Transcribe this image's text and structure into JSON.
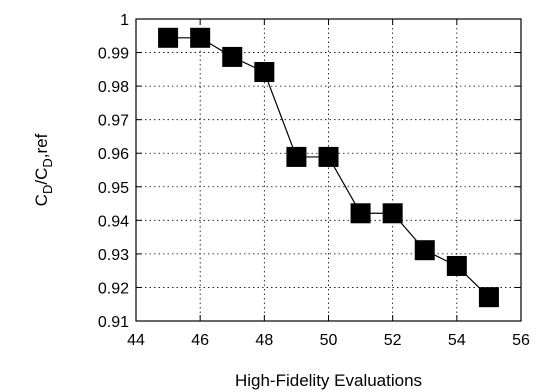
{
  "chart_data": {
    "type": "line",
    "title": "",
    "xlabel": "High-Fidelity Evaluations",
    "ylabel": "C_D/C_D,ref",
    "ylabel_parts": {
      "c1": "C",
      "s1": "D",
      "mid": "/C",
      "s2": "D",
      "tail": ",ref"
    },
    "xlim": [
      44,
      56
    ],
    "ylim": [
      0.91,
      1.0
    ],
    "x_ticks": [
      44,
      46,
      48,
      50,
      52,
      54,
      56
    ],
    "y_ticks": [
      0.91,
      0.92,
      0.93,
      0.94,
      0.95,
      0.96,
      0.97,
      0.98,
      0.99,
      1.0
    ],
    "x_tick_labels": [
      "44",
      "46",
      "48",
      "50",
      "52",
      "54",
      "56"
    ],
    "y_tick_labels": [
      "0.91",
      "0.92",
      "0.93",
      "0.94",
      "0.95",
      "0.96",
      "0.97",
      "0.98",
      "0.99",
      "1"
    ],
    "grid": true,
    "legend": "none",
    "series": [
      {
        "marker": "square",
        "color": "#000000",
        "x": [
          45,
          46,
          47,
          48,
          49,
          50,
          51,
          52,
          53,
          54,
          55
        ],
        "values": [
          0.9944,
          0.9944,
          0.9887,
          0.9842,
          0.9589,
          0.9589,
          0.9421,
          0.9421,
          0.9311,
          0.9264,
          0.9171
        ]
      }
    ]
  }
}
